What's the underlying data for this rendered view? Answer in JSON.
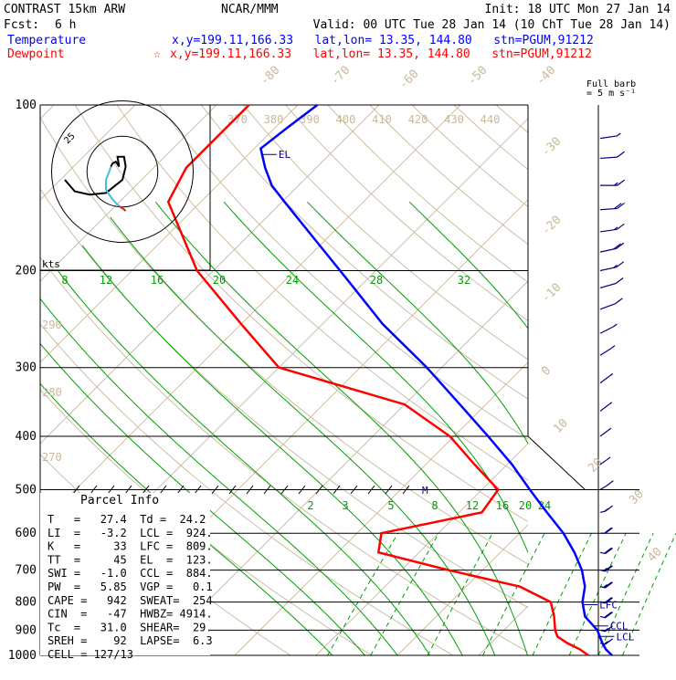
{
  "header": {
    "model": "CONTRAST 15km ARW",
    "center": "NCAR/MMM",
    "init": "Init: 18 UTC Mon 27 Jan 14",
    "fcst_label": "Fcst:",
    "fcst_value": "6 h",
    "valid": "Valid: 00 UTC Tue 28 Jan 14 (10 ChT Tue 28 Jan 14)",
    "temperature_label": "Temperature",
    "temperature_loc": "x,y=199.11,166.33   lat,lon= 13.35, 144.80   stn=PGUM,91212",
    "dewpoint_label": "Dewpoint",
    "dewpoint_loc": "x,y=199.11,166.33   lat,lon= 13.35, 144.80   stn=PGUM,91212",
    "full_barb_line1": "Full barb",
    "full_barb_line2": "= 5 m s⁻¹"
  },
  "colors": {
    "temperature": "#ff0000",
    "dewpoint": "#0000ff",
    "isotherm": "#c8b89a",
    "dry_adiabat": "#c8b89a",
    "moist_adiabat": "#00a000",
    "mixing_ratio": "#00a000",
    "isobar": "#000000",
    "hodo_line": "#000000",
    "hodo_low": "#40c0e0",
    "hodo_sfc": "#e02020",
    "barb": "#000080"
  },
  "chart_data": {
    "type": "line",
    "chart_kind": "Skew-T log-P sounding",
    "pressure_levels": [
      100,
      200,
      300,
      400,
      500,
      600,
      700,
      800,
      900,
      1000
    ],
    "isotherm_labels": [
      "-80",
      "-70",
      "-60",
      "-50",
      "-40",
      "-30",
      "-20",
      "-10",
      "0",
      "10",
      "20",
      "30",
      "40"
    ],
    "theta_labels_top": [
      "370",
      "380",
      "390",
      "400",
      "410",
      "420",
      "430",
      "440"
    ],
    "theta_labels_left": [
      "290",
      "280",
      "270"
    ],
    "moist_labels": [
      "8",
      "12",
      "16",
      "20",
      "24",
      "28",
      "32"
    ],
    "mixing_labels": [
      "2",
      "3",
      "5",
      "8",
      "12",
      "16",
      "20",
      "24"
    ],
    "series": [
      {
        "name": "Temperature",
        "points": [
          [
            1000,
            26.4
          ],
          [
            975,
            24.9
          ],
          [
            950,
            23.7
          ],
          [
            925,
            22.6
          ],
          [
            900,
            21.5
          ],
          [
            850,
            18.3
          ],
          [
            800,
            16.2
          ],
          [
            750,
            14.6
          ],
          [
            700,
            12.2
          ],
          [
            650,
            9.1
          ],
          [
            600,
            5.4
          ],
          [
            550,
            0.8
          ],
          [
            500,
            -4.1
          ],
          [
            450,
            -9.4
          ],
          [
            400,
            -15.8
          ],
          [
            350,
            -23.2
          ],
          [
            300,
            -31.8
          ],
          [
            250,
            -42.6
          ],
          [
            200,
            -54.4
          ],
          [
            175,
            -61.5
          ],
          [
            150,
            -69.7
          ],
          [
            140,
            -73.3
          ],
          [
            130,
            -76.3
          ],
          [
            120,
            -79.2
          ],
          [
            110,
            -78.5
          ],
          [
            100,
            -77.6
          ]
        ]
      },
      {
        "name": "Dewpoint",
        "points": [
          [
            1000,
            23.5
          ],
          [
            975,
            21.7
          ],
          [
            950,
            19.4
          ],
          [
            925,
            17.4
          ],
          [
            900,
            16.3
          ],
          [
            850,
            14.5
          ],
          [
            800,
            12.3
          ],
          [
            750,
            6.6
          ],
          [
            700,
            -4.2
          ],
          [
            650,
            -15.0
          ],
          [
            600,
            -17.0
          ],
          [
            550,
            -7.2
          ],
          [
            500,
            -8.0
          ],
          [
            450,
            -14.0
          ],
          [
            400,
            -20.5
          ],
          [
            350,
            -30.0
          ],
          [
            300,
            -50.0
          ],
          [
            250,
            -60.0
          ],
          [
            200,
            -72.0
          ],
          [
            150,
            -84.0
          ],
          [
            130,
            -86.0
          ],
          [
            110,
            -86.0
          ],
          [
            100,
            -86.0
          ]
        ]
      }
    ],
    "levels": {
      "EL": {
        "label": "EL",
        "pressure": 123
      },
      "LFC": {
        "label": "LFC",
        "pressure": 809
      },
      "CCL": {
        "label": "CCL",
        "pressure": 884
      },
      "LCL": {
        "label": "LCL",
        "pressure": 924
      },
      "M": {
        "label": "M",
        "pressure": 500
      }
    },
    "hodograph": {
      "speed_label": "kts",
      "ring_label": "25",
      "rings_kt": [
        25,
        50
      ],
      "upper": [
        [
          -70,
          10
        ],
        [
          -58,
          24
        ],
        [
          -40,
          28
        ],
        [
          -20,
          26
        ],
        [
          0,
          10
        ],
        [
          4,
          -6
        ],
        [
          2,
          -18
        ],
        [
          -6,
          -18
        ],
        [
          -4,
          -6
        ],
        [
          -8,
          -12
        ],
        [
          -12,
          -10
        ],
        [
          -14,
          -6
        ]
      ],
      "low": [
        [
          -14,
          -6
        ],
        [
          -16,
          0
        ],
        [
          -20,
          10
        ],
        [
          -20,
          22
        ],
        [
          -12,
          34
        ],
        [
          -4,
          42
        ]
      ],
      "sfc": [
        [
          -4,
          42
        ],
        [
          2,
          46
        ],
        [
          4,
          48
        ]
      ]
    },
    "wind_barbs": [
      {
        "p": 115,
        "speed_kt": 5,
        "dir": 250
      },
      {
        "p": 125,
        "speed_kt": 10,
        "dir": 260
      },
      {
        "p": 140,
        "speed_kt": 15,
        "dir": 270
      },
      {
        "p": 155,
        "speed_kt": 20,
        "dir": 260
      },
      {
        "p": 170,
        "speed_kt": 15,
        "dir": 250
      },
      {
        "p": 185,
        "speed_kt": 20,
        "dir": 240
      },
      {
        "p": 200,
        "speed_kt": 15,
        "dir": 240
      },
      {
        "p": 215,
        "speed_kt": 10,
        "dir": 230
      },
      {
        "p": 235,
        "speed_kt": 10,
        "dir": 220
      },
      {
        "p": 260,
        "speed_kt": 5,
        "dir": 200
      },
      {
        "p": 285,
        "speed_kt": 5,
        "dir": 180
      },
      {
        "p": 320,
        "speed_kt": 5,
        "dir": 160
      },
      {
        "p": 360,
        "speed_kt": 5,
        "dir": 150
      },
      {
        "p": 400,
        "speed_kt": 5,
        "dir": 140
      },
      {
        "p": 450,
        "speed_kt": 5,
        "dir": 130
      },
      {
        "p": 500,
        "speed_kt": 10,
        "dir": 120
      },
      {
        "p": 550,
        "speed_kt": 15,
        "dir": 100
      },
      {
        "p": 600,
        "speed_kt": 20,
        "dir": 90
      },
      {
        "p": 650,
        "speed_kt": 20,
        "dir": 80
      },
      {
        "p": 700,
        "speed_kt": 25,
        "dir": 80
      },
      {
        "p": 750,
        "speed_kt": 25,
        "dir": 80
      },
      {
        "p": 800,
        "speed_kt": 20,
        "dir": 80
      },
      {
        "p": 850,
        "speed_kt": 20,
        "dir": 80
      },
      {
        "p": 900,
        "speed_kt": 15,
        "dir": 80
      },
      {
        "p": 950,
        "speed_kt": 15,
        "dir": 80
      }
    ]
  },
  "parcel_info": {
    "title": "Parcel Info",
    "rows": [
      "T   =   27.4  Td =  24.2",
      "LI  =   -3.2  LCL =  924.",
      "K   =     33  LFC =  809.",
      "TT  =     45  EL  =  123.",
      "SWI =   -1.0  CCL =  884.",
      "PW  =   5.85  VGP =   0.1",
      "CAPE =   942  SWEAT=  254",
      "CIN  =   -47  HWBZ= 4914.",
      "Tc  =   31.0  SHEAR=  29.",
      "SREH =    92  LAPSE=  6.3",
      "CELL = 127/13"
    ]
  }
}
